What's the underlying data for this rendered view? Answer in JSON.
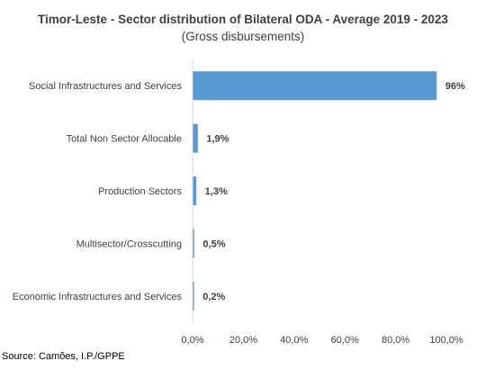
{
  "chart_data": {
    "type": "bar",
    "orientation": "horizontal",
    "title": "Timor-Leste - Sector distribution of Bilateral ODA - Average 2019  - 2023",
    "subtitle": "(Gross disbursements)",
    "categories": [
      "Social Infrastructures and Services",
      "Total Non Sector Allocable",
      "Production Sectors",
      "Multisector/Crosscutting",
      "Economic Infrastructures and Services"
    ],
    "values": [
      96,
      1.9,
      1.3,
      0.5,
      0.2
    ],
    "data_labels": [
      "96%",
      "1,9%",
      "1,3%",
      "0,5%",
      "0,2%"
    ],
    "xlim": [
      0,
      100
    ],
    "xticks": [
      "0,0%",
      "20,0%",
      "40,0%",
      "60,0%",
      "80,0%",
      "100,0%"
    ],
    "bar_color": "#5B9BD5",
    "grid": false,
    "legend": "none"
  },
  "source": "Source: Camões, I.P./GPPE"
}
